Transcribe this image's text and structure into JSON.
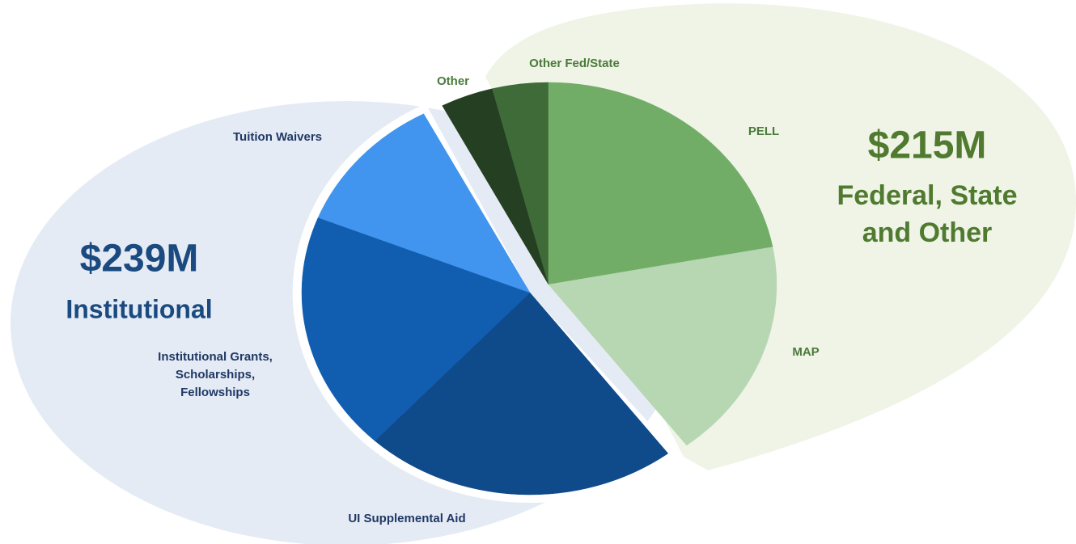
{
  "chart_data": {
    "type": "pie",
    "series": [
      {
        "name": "Federal, State and Other",
        "total_label": "$215M",
        "color": "#4f7a2f",
        "categories": [
          "Other",
          "Other Fed/State",
          "PELL",
          "MAP"
        ],
        "values": [
          17,
          18,
          100,
          80
        ],
        "colors": [
          "#243f22",
          "#3e6b38",
          "#72ad67",
          "#b6d7b1"
        ]
      },
      {
        "name": "Institutional",
        "total_label": "$239M",
        "color": "#1a4a7f",
        "categories": [
          "UI Supplemental Aid",
          "Institutional Grants, Scholarships, Fellowships",
          "Tuition Waivers"
        ],
        "values": [
          101,
          87,
          51
        ],
        "colors": [
          "#0f4a8a",
          "#115db0",
          "#4195ee"
        ]
      }
    ]
  }
}
